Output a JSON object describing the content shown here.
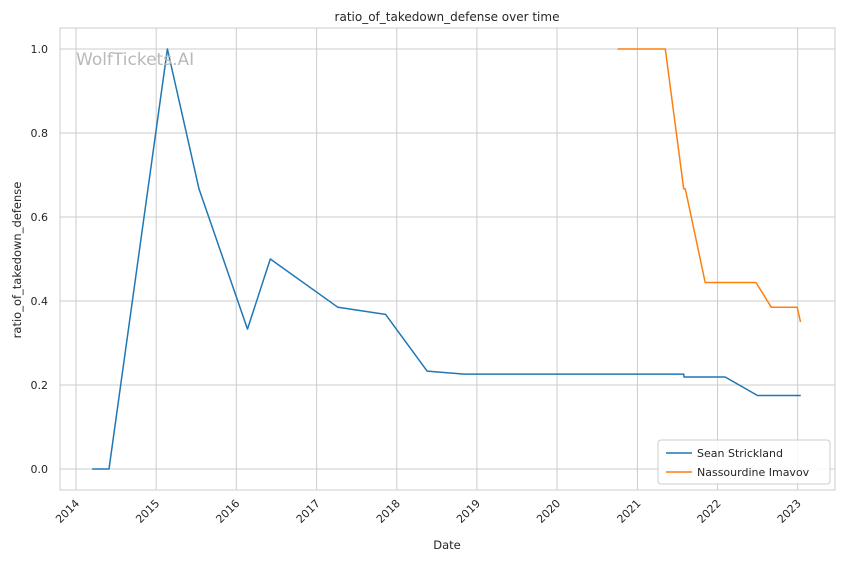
{
  "chart_data": {
    "type": "line",
    "title": "ratio_of_takedown_defense over time",
    "xlabel": "Date",
    "ylabel": "ratio_of_takedown_defense",
    "watermark": "WolfTickets.AI",
    "x_ticks": [
      "2014",
      "2015",
      "2016",
      "2017",
      "2018",
      "2019",
      "2020",
      "2021",
      "2022",
      "2023"
    ],
    "y_ticks": [
      "0.0",
      "0.2",
      "0.4",
      "0.6",
      "0.8",
      "1.0"
    ],
    "xlim": [
      "2013-10-20",
      "2023-06-20"
    ],
    "ylim": [
      -0.05,
      1.05
    ],
    "grid": true,
    "legend_position": "bottom-right",
    "series": [
      {
        "name": "Sean Strickland",
        "color": "#1f77b4",
        "points": [
          [
            "2014-03-15",
            0.0
          ],
          [
            "2014-05-31",
            0.0
          ],
          [
            "2015-02-21",
            1.0
          ],
          [
            "2015-07-15",
            0.667
          ],
          [
            "2016-02-21",
            0.333
          ],
          [
            "2016-06-04",
            0.5
          ],
          [
            "2017-04-08",
            0.385
          ],
          [
            "2017-11-11",
            0.368
          ],
          [
            "2018-05-19",
            0.233
          ],
          [
            "2018-11-03",
            0.226
          ],
          [
            "2021-07-31",
            0.226
          ],
          [
            "2021-08-01",
            0.219
          ],
          [
            "2022-02-05",
            0.219
          ],
          [
            "2022-07-02",
            0.175
          ],
          [
            "2023-01-15",
            0.175
          ]
        ]
      },
      {
        "name": "Nassourdine Imavov",
        "color": "#ff7f0e",
        "points": [
          [
            "2020-10-03",
            1.0
          ],
          [
            "2021-05-08",
            1.0
          ],
          [
            "2021-07-31",
            0.667
          ],
          [
            "2021-08-07",
            0.667
          ],
          [
            "2021-11-06",
            0.444
          ],
          [
            "2022-06-25",
            0.444
          ],
          [
            "2022-09-03",
            0.385
          ],
          [
            "2022-12-30",
            0.385
          ],
          [
            "2023-01-14",
            0.35
          ]
        ]
      }
    ]
  }
}
